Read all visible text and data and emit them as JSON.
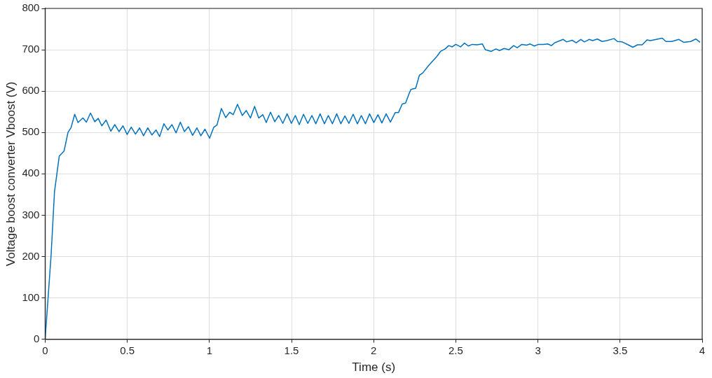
{
  "chart_data": {
    "type": "line",
    "xlabel": "Time (s)",
    "ylabel": "Voltage boost converter Vboost (V)",
    "xlim": [
      0,
      4
    ],
    "ylim": [
      0,
      800
    ],
    "xticks": [
      0,
      0.5,
      1,
      1.5,
      2,
      2.5,
      3,
      3.5,
      4
    ],
    "yticks": [
      0,
      100,
      200,
      300,
      400,
      500,
      600,
      700,
      800
    ],
    "grid": true,
    "legend": false,
    "marker": "none",
    "line_style": "solid",
    "series": [
      {
        "color": "#0072bd",
        "x": [
          0,
          0.036,
          0.057,
          0.086,
          0.115,
          0.139,
          0.158,
          0.18,
          0.2,
          0.23,
          0.251,
          0.276,
          0.302,
          0.323,
          0.345,
          0.371,
          0.4,
          0.424,
          0.45,
          0.474,
          0.499,
          0.524,
          0.55,
          0.575,
          0.599,
          0.625,
          0.65,
          0.675,
          0.697,
          0.723,
          0.747,
          0.772,
          0.797,
          0.823,
          0.848,
          0.872,
          0.898,
          0.924,
          0.948,
          0.973,
          1.001,
          1.027,
          1.046,
          1.073,
          1.099,
          1.124,
          1.145,
          1.171,
          1.2,
          1.224,
          1.25,
          1.275,
          1.3,
          1.325,
          1.346,
          1.372,
          1.398,
          1.422,
          1.447,
          1.473,
          1.499,
          1.523,
          1.547,
          1.573,
          1.599,
          1.624,
          1.648,
          1.674,
          1.7,
          1.724,
          1.749,
          1.775,
          1.8,
          1.825,
          1.849,
          1.875,
          1.901,
          1.925,
          1.95,
          1.975,
          2.001,
          2.026,
          2.05,
          2.076,
          2.102,
          2.131,
          2.151,
          2.174,
          2.194,
          2.22,
          2.227,
          2.256,
          2.278,
          2.299,
          2.335,
          2.385,
          2.407,
          2.435,
          2.457,
          2.478,
          2.5,
          2.529,
          2.553,
          2.576,
          2.6,
          2.629,
          2.662,
          2.68,
          2.716,
          2.744,
          2.766,
          2.794,
          2.823,
          2.852,
          2.874,
          2.902,
          2.931,
          2.953,
          2.978,
          3.003,
          3.032,
          3.06,
          3.082,
          3.103,
          3.154,
          3.175,
          3.208,
          3.233,
          3.261,
          3.283,
          3.312,
          3.333,
          3.362,
          3.391,
          3.42,
          3.463,
          3.484,
          3.513,
          3.549,
          3.578,
          3.606,
          3.635,
          3.664,
          3.685,
          3.721,
          3.757,
          3.779,
          3.815,
          3.858,
          3.887,
          3.93,
          3.961,
          3.987
        ],
        "values": [
          0,
          202,
          357,
          443,
          455,
          500,
          512,
          544,
          524,
          535,
          525,
          547,
          526,
          534,
          516,
          530,
          503,
          519,
          502,
          516,
          495,
          513,
          496,
          511,
          492,
          511,
          494,
          506,
          490,
          521,
          506,
          519,
          499,
          525,
          502,
          514,
          493,
          511,
          492,
          508,
          486,
          513,
          518,
          558,
          536,
          549,
          543,
          568,
          541,
          553,
          535,
          563,
          535,
          543,
          524,
          549,
          526,
          541,
          522,
          545,
          522,
          541,
          519,
          544,
          522,
          541,
          521,
          545,
          521,
          541,
          521,
          545,
          521,
          540,
          522,
          544,
          521,
          541,
          521,
          545,
          524,
          543,
          523,
          545,
          525,
          548,
          548,
          569,
          571,
          598,
          604,
          607,
          638,
          644,
          662,
          684,
          696,
          702,
          710,
          707,
          713,
          707,
          716,
          709,
          713,
          712,
          714,
          700,
          696,
          702,
          698,
          703,
          700,
          710,
          705,
          713,
          711,
          714,
          709,
          713,
          713,
          714,
          710,
          717,
          725,
          719,
          723,
          717,
          725,
          719,
          725,
          722,
          726,
          720,
          722,
          727,
          720,
          719,
          712,
          706,
          712,
          712,
          724,
          722,
          725,
          728,
          720,
          720,
          725,
          718,
          720,
          726,
          718
        ]
      }
    ]
  }
}
